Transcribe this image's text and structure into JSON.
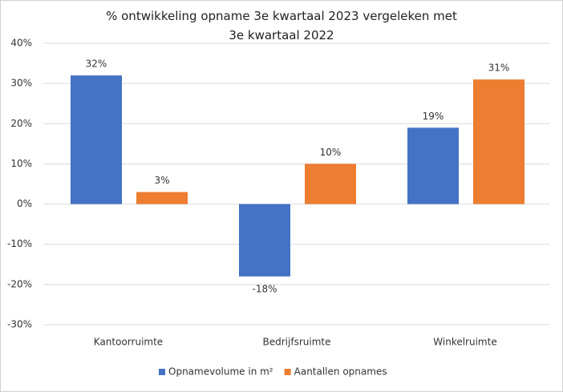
{
  "chart_data": {
    "type": "bar",
    "title": "% ontwikkeling opname 3e kwartaal 2023 vergeleken met 3e kwartaal 2022",
    "categories": [
      "Kantoorruimte",
      "Bedrijfsruimte",
      "Winkelruimte"
    ],
    "series": [
      {
        "name": "Opnamevolume in m²",
        "color": "#4472c4",
        "values": [
          32,
          -18,
          19
        ],
        "value_labels": [
          "32%",
          "-18%",
          "19%"
        ]
      },
      {
        "name": "Aantallen opnames",
        "color": "#ed7d31",
        "values": [
          3,
          10,
          31
        ],
        "value_labels": [
          "3%",
          "10%",
          "31%"
        ]
      }
    ],
    "ylim": [
      -30,
      40
    ],
    "yticks": [
      {
        "value": -30,
        "label": "-30%"
      },
      {
        "value": -20,
        "label": "-20%"
      },
      {
        "value": -10,
        "label": "-10%"
      },
      {
        "value": 0,
        "label": "0%"
      },
      {
        "value": 10,
        "label": "10%"
      },
      {
        "value": 20,
        "label": "20%"
      },
      {
        "value": 30,
        "label": "30%"
      },
      {
        "value": 40,
        "label": "40%"
      }
    ],
    "grid": true,
    "legend": "bottom"
  }
}
